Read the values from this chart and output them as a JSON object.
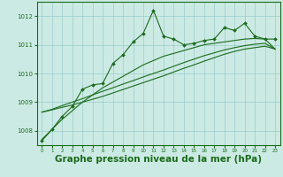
{
  "bg_color": "#cceae4",
  "grid_color": "#99cccc",
  "line_color": "#1a6b1a",
  "marker_color": "#1a6b1a",
  "xlabel": "Graphe pression niveau de la mer (hPa)",
  "xlabel_fontsize": 7.5,
  "ylim": [
    1007.5,
    1012.5
  ],
  "xlim": [
    -0.5,
    23.5
  ],
  "yticks": [
    1008,
    1009,
    1010,
    1011,
    1012
  ],
  "xticks": [
    0,
    1,
    2,
    3,
    4,
    5,
    6,
    7,
    8,
    9,
    10,
    11,
    12,
    13,
    14,
    15,
    16,
    17,
    18,
    19,
    20,
    21,
    22,
    23
  ],
  "series1": [
    1007.65,
    1008.05,
    1008.5,
    1008.85,
    1009.45,
    1009.6,
    1009.65,
    1010.35,
    1010.65,
    1011.1,
    1011.4,
    1012.2,
    1011.3,
    1011.2,
    1011.0,
    1011.05,
    1011.15,
    1011.2,
    1011.6,
    1011.5,
    1011.75,
    1011.3,
    1011.2,
    1011.2
  ],
  "trend1": [
    1007.7,
    1008.05,
    1008.4,
    1008.7,
    1009.0,
    1009.25,
    1009.5,
    1009.7,
    1009.9,
    1010.1,
    1010.3,
    1010.45,
    1010.6,
    1010.7,
    1010.8,
    1010.9,
    1011.0,
    1011.05,
    1011.1,
    1011.15,
    1011.2,
    1011.22,
    1011.2,
    1010.85
  ],
  "trend2": [
    1008.65,
    1008.75,
    1008.88,
    1009.0,
    1009.12,
    1009.25,
    1009.38,
    1009.5,
    1009.63,
    1009.75,
    1009.88,
    1010.0,
    1010.12,
    1010.25,
    1010.38,
    1010.5,
    1010.62,
    1010.72,
    1010.82,
    1010.9,
    1010.97,
    1011.02,
    1011.05,
    1010.85
  ],
  "trend3": [
    1008.65,
    1008.73,
    1008.82,
    1008.9,
    1009.0,
    1009.1,
    1009.2,
    1009.32,
    1009.44,
    1009.56,
    1009.68,
    1009.8,
    1009.92,
    1010.05,
    1010.18,
    1010.3,
    1010.43,
    1010.55,
    1010.67,
    1010.77,
    1010.85,
    1010.9,
    1010.95,
    1010.85
  ]
}
